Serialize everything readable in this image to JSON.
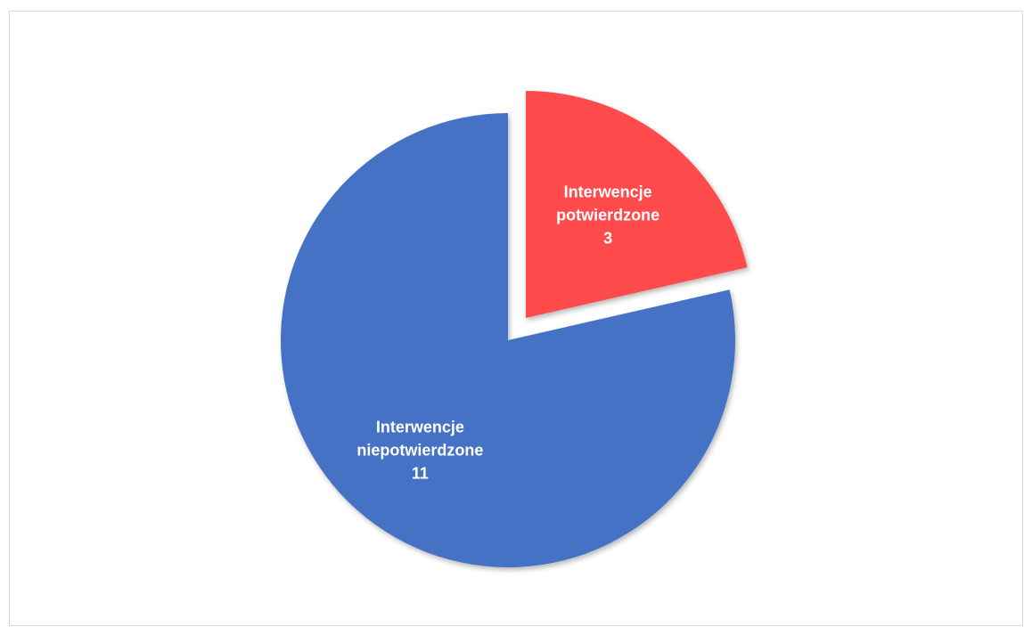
{
  "chart_data": {
    "type": "pie",
    "title": "",
    "categories": [
      "Interwencje potwierdzone",
      "Interwencje niepotwierdzone"
    ],
    "values": [
      3,
      11
    ],
    "slices": [
      {
        "label_lines": [
          "Interwencje",
          "potwierdzone"
        ],
        "value": 3,
        "color": "#ff4b4b",
        "exploded": true
      },
      {
        "label_lines": [
          "Interwencje",
          "niepotwierdzone"
        ],
        "value": 11,
        "color": "#4472c4",
        "exploded": false
      }
    ],
    "legend": "none",
    "data_labels": "inside"
  }
}
